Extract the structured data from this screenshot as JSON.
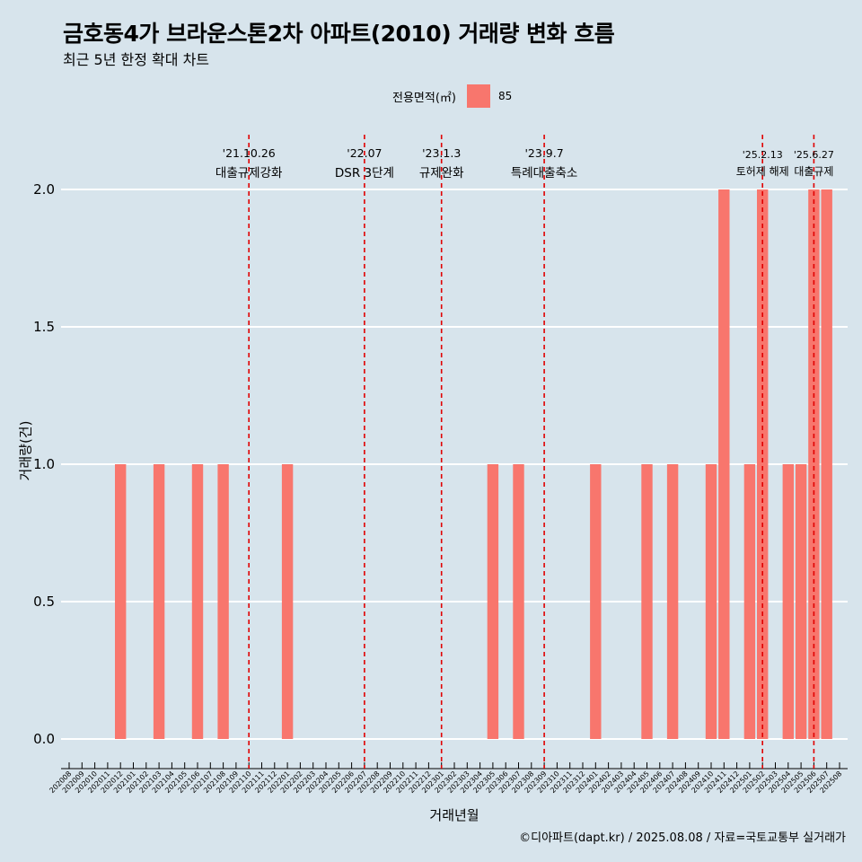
{
  "header": {
    "title": "금호동4가 브라운스톤2차 아파트(2010) 거래량 변화 흐름",
    "subtitle": "최근 5년 한정 확대 차트"
  },
  "legend": {
    "title": "전용면적(㎡)",
    "items": [
      "85"
    ]
  },
  "caption": "©디아파트(dapt.kr) / 2025.08.08 / 자료=국토교통부 실거래가",
  "colors": {
    "background": "#d7e4ec",
    "bar": "#f8766d",
    "policy_line": "#e00000",
    "grid": "#ffffff"
  },
  "chart_data": {
    "type": "bar",
    "xlabel": "거래년월",
    "ylabel": "거래량(건)",
    "ylim": [
      0,
      2
    ],
    "yticks": [
      "0.0",
      "0.5",
      "1.0",
      "1.5",
      "2.0"
    ],
    "grid": "horizontal",
    "legend_position": "top",
    "categories": [
      "202008",
      "202009",
      "202010",
      "202011",
      "202012",
      "202101",
      "202102",
      "202103",
      "202104",
      "202105",
      "202106",
      "202107",
      "202108",
      "202109",
      "202110",
      "202111",
      "202112",
      "202201",
      "202202",
      "202203",
      "202204",
      "202205",
      "202206",
      "202207",
      "202208",
      "202209",
      "202210",
      "202211",
      "202212",
      "202301",
      "202302",
      "202303",
      "202304",
      "202305",
      "202306",
      "202307",
      "202308",
      "202309",
      "202310",
      "202311",
      "202312",
      "202401",
      "202402",
      "202403",
      "202404",
      "202405",
      "202406",
      "202407",
      "202408",
      "202409",
      "202410",
      "202411",
      "202412",
      "202501",
      "202502",
      "202503",
      "202504",
      "202505",
      "202506",
      "202507",
      "202508"
    ],
    "series": [
      {
        "name": "85",
        "values": [
          0,
          0,
          0,
          0,
          1,
          0,
          0,
          1,
          0,
          0,
          1,
          0,
          1,
          0,
          0,
          0,
          0,
          1,
          0,
          0,
          0,
          0,
          0,
          0,
          0,
          0,
          0,
          0,
          0,
          0,
          0,
          0,
          0,
          1,
          0,
          1,
          0,
          0,
          0,
          0,
          0,
          1,
          0,
          0,
          0,
          1,
          0,
          1,
          0,
          0,
          1,
          2,
          0,
          1,
          2,
          0,
          1,
          1,
          2,
          2,
          0
        ]
      }
    ],
    "annotations": [
      {
        "at": "202110",
        "date": "'21.10.26",
        "label": "대출규제강화"
      },
      {
        "at": "202207",
        "date": "'22.07",
        "label": "DSR 3단계"
      },
      {
        "at": "202301",
        "date": "'23.1.3",
        "label": "규제완화"
      },
      {
        "at": "202309",
        "date": "'23.9.7",
        "label": "특례대출축소"
      },
      {
        "at": "202502",
        "date": "'25.2.13",
        "label": "토허제 해제"
      },
      {
        "at": "202506",
        "date": "'25.6.27",
        "label": "대출규제"
      }
    ]
  }
}
